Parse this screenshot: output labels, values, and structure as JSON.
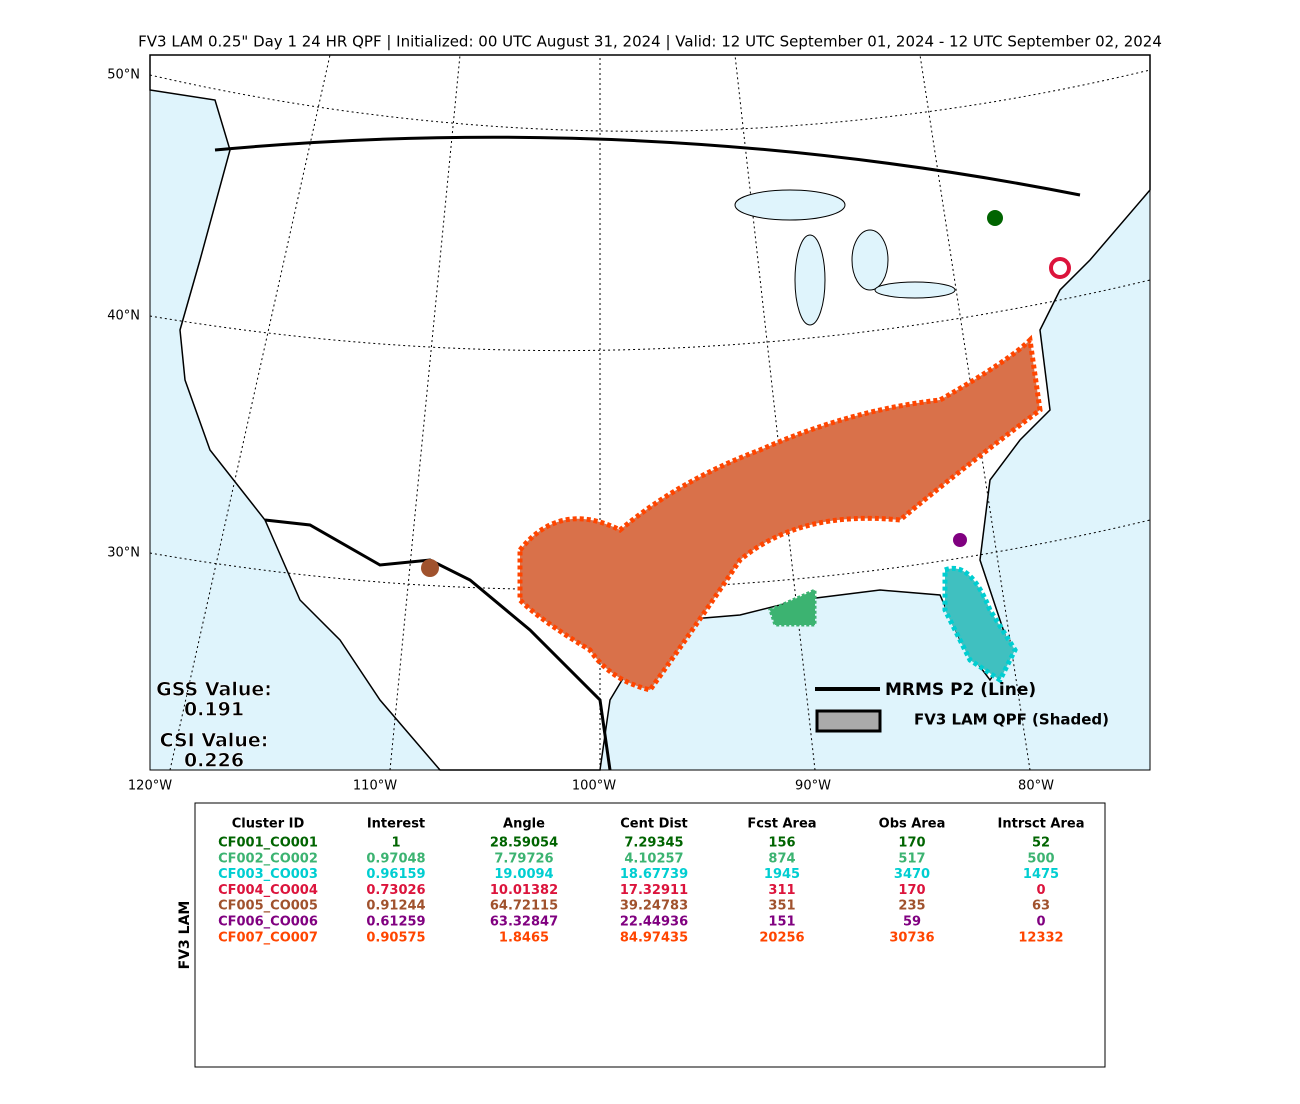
{
  "title": "FV3 LAM 0.25\" Day 1 24 HR QPF | Initialized: 00 UTC August 31, 2024 | Valid: 12 UTC September 01, 2024 - 12 UTC September 02, 2024",
  "map": {
    "lat_labels": [
      "50°N",
      "40°N",
      "30°N"
    ],
    "lon_labels": [
      "120°W",
      "110°W",
      "100°W",
      "90°W",
      "80°W"
    ],
    "gss_label": "GSS Value:",
    "gss_value": "0.191",
    "csi_label": "CSI Value:",
    "csi_value": "0.226",
    "legend": [
      "MRMS P2 (Line)",
      "FV3 LAM QPF (Shaded)"
    ]
  },
  "table": {
    "side_label": "FV3 LAM",
    "headers": [
      "Cluster ID",
      "Interest",
      "Angle",
      "Cent Dist",
      "Fcst Area",
      "Obs Area",
      "Intrsct Area"
    ],
    "rows": [
      {
        "color": "#006400",
        "cells": [
          "CF001_CO001",
          "1",
          "28.59054",
          "7.29345",
          "156",
          "170",
          "52"
        ]
      },
      {
        "color": "#3cb371",
        "cells": [
          "CF002_CO002",
          "0.97048",
          "7.79726",
          "4.10257",
          "874",
          "517",
          "500"
        ]
      },
      {
        "color": "#00ced1",
        "cells": [
          "CF003_CO003",
          "0.96159",
          "19.0094",
          "18.67739",
          "1945",
          "3470",
          "1475"
        ]
      },
      {
        "color": "#dc143c",
        "cells": [
          "CF004_CO004",
          "0.73026",
          "10.01382",
          "17.32911",
          "311",
          "170",
          "0"
        ]
      },
      {
        "color": "#a0522d",
        "cells": [
          "CF005_CO005",
          "0.91244",
          "64.72115",
          "39.24783",
          "351",
          "235",
          "63"
        ]
      },
      {
        "color": "#800080",
        "cells": [
          "CF006_CO006",
          "0.61259",
          "63.32847",
          "22.44936",
          "151",
          "59",
          "0"
        ]
      },
      {
        "color": "#ff4500",
        "cells": [
          "CF007_CO007",
          "0.90575",
          "1.8465",
          "84.97435",
          "20256",
          "30736",
          "12332"
        ]
      }
    ]
  }
}
